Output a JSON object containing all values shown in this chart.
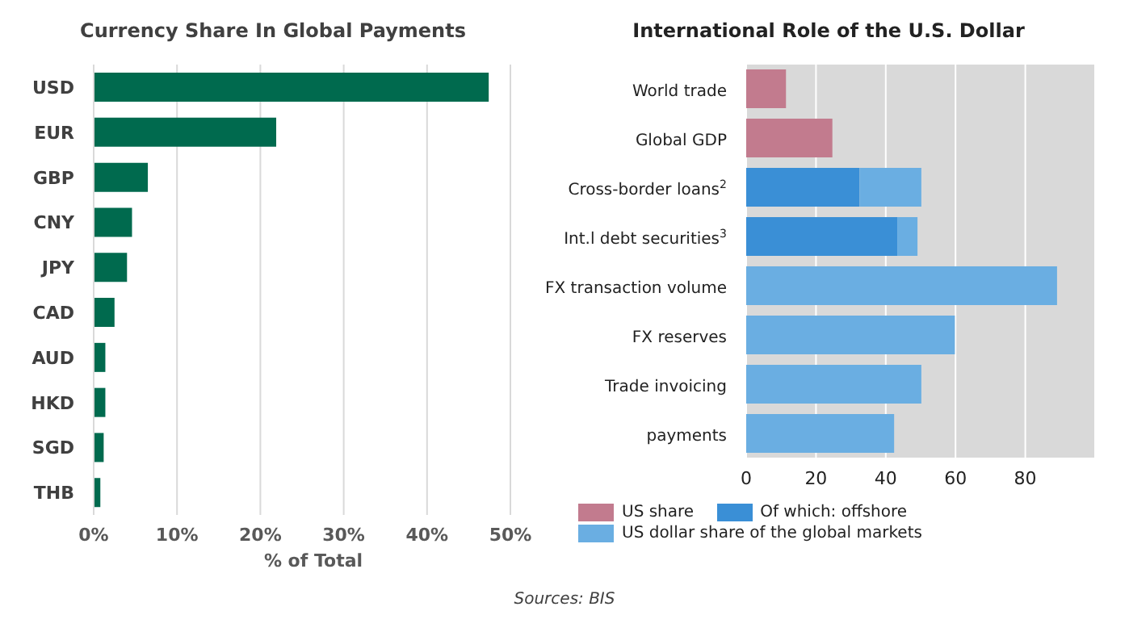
{
  "chart_data": [
    {
      "type": "bar",
      "orientation": "horizontal",
      "title": "Currency Share In Global Payments",
      "xlabel": "% of Total",
      "categories": [
        "USD",
        "EUR",
        "GBP",
        "CNY",
        "JPY",
        "CAD",
        "AUD",
        "HKD",
        "SGD",
        "THB"
      ],
      "values": [
        47.4,
        21.9,
        6.5,
        4.6,
        4.0,
        2.5,
        1.4,
        1.4,
        1.2,
        0.8
      ],
      "color": "#006a4e",
      "xlim": [
        0,
        50
      ],
      "xticks": [
        {
          "value": 0,
          "label": "0%"
        },
        {
          "value": 10,
          "label": "10%"
        },
        {
          "value": 20,
          "label": "20%"
        },
        {
          "value": 30,
          "label": "30%"
        },
        {
          "value": 40,
          "label": "40%"
        },
        {
          "value": 50,
          "label": "50%"
        }
      ],
      "grid": "x",
      "legend": false
    },
    {
      "type": "bar",
      "orientation": "horizontal",
      "stacked": true,
      "title": "International Role of the U.S. Dollar",
      "categories": [
        "World trade",
        "Global GDP",
        "Cross-border loans$^{2}$",
        "Int.l debt securities$^{3}$",
        "FX transaction volume",
        "FX reserves",
        "Trade invoicing",
        "payments"
      ],
      "series": [
        {
          "name": "US share",
          "color": "#c27b8e",
          "values": [
            11.4,
            24.7,
            null,
            null,
            null,
            null,
            null,
            null
          ]
        },
        {
          "name": "Of which: offshore",
          "color": "#3a8fd6",
          "values": [
            null,
            null,
            32.5,
            43.3,
            null,
            null,
            null,
            null
          ]
        },
        {
          "name": "US dollar share of the global markets",
          "color": "#6aaee2",
          "values": [
            null,
            null,
            17.7,
            5.8,
            89.1,
            59.8,
            50.2,
            42.4
          ]
        }
      ],
      "xlim": [
        0,
        100
      ],
      "xticks": [
        0,
        20,
        40,
        60,
        80
      ],
      "grid": "x",
      "legend": "bottom",
      "annotations": [
        "Sources: BIS"
      ]
    }
  ]
}
